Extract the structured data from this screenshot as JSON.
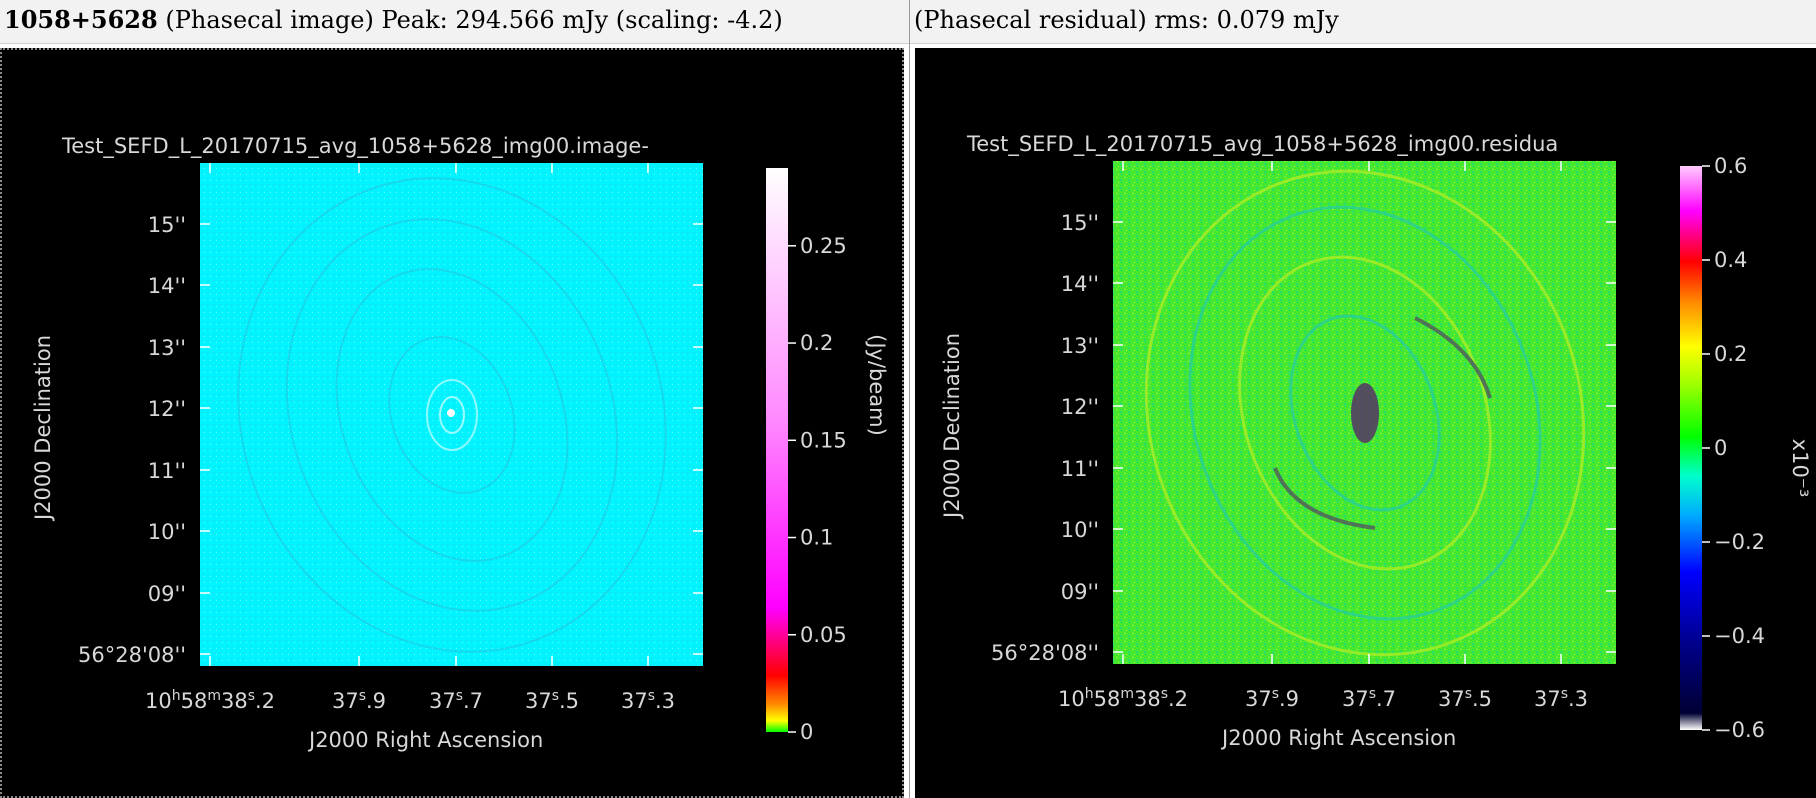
{
  "left_header": {
    "source": "1058+5628",
    "rest": "(Phasecal image) Peak: 294.566 mJy (scaling: -4.2)"
  },
  "right_header": {
    "text": "(Phasecal residual) rms: 0.079 mJy"
  },
  "left_plot": {
    "title": "Test_SEFD_L_20170715_avg_1058+5628_img00.image-",
    "ylabel": "J2000 Declination",
    "xlabel": "J2000 Right Ascension",
    "colorbar_label": "(Jy/beam)",
    "colorbar_ticks": [
      "0.25",
      "0.2",
      "0.15",
      "0.1",
      "0.05",
      "0"
    ],
    "colorbar_tick_values": [
      0.25,
      0.2,
      0.15,
      0.1,
      0.05,
      0
    ],
    "colorbar_range": [
      0,
      0.29
    ],
    "colormap": [
      "#00ff00",
      "#ffff00",
      "#ff8800",
      "#ff0000",
      "#ff00ff",
      "#ffffff"
    ]
  },
  "right_plot": {
    "title": "Test_SEFD_L_20170715_avg_1058+5628_img00.residua",
    "ylabel": "J2000 Declination",
    "xlabel": "J2000 Right Ascension",
    "colorbar_label": "x10⁻³",
    "colorbar_ticks": [
      "0.6",
      "0.4",
      "0.2",
      "0",
      "−0.2",
      "−0.4",
      "−0.6"
    ],
    "colorbar_tick_values": [
      0.6,
      0.4,
      0.2,
      0,
      -0.2,
      -0.4,
      -0.6
    ],
    "colorbar_range": [
      -0.6,
      0.6
    ]
  },
  "axes": {
    "dec_ticks": [
      "15''",
      "14''",
      "13''",
      "12''",
      "11''",
      "10''",
      "09''",
      "56°28'08''"
    ],
    "ra_ticks": [
      {
        "main": "10",
        "s1": "h",
        "m2": "58",
        "s2": "m",
        "m3": "38",
        "s3": "s",
        "m4": ".2"
      },
      {
        "main": "37",
        "s1": "s",
        "m2": ".9"
      },
      {
        "main": "37",
        "s1": "s",
        "m2": ".7"
      },
      {
        "main": "37",
        "s1": "s",
        "m2": ".5"
      },
      {
        "main": "37",
        "s1": "s",
        "m2": ".3"
      }
    ]
  },
  "colors": {
    "image_bg": "#00ffff",
    "residual_bg": "#33ee22",
    "panel_bg": "#000000"
  }
}
